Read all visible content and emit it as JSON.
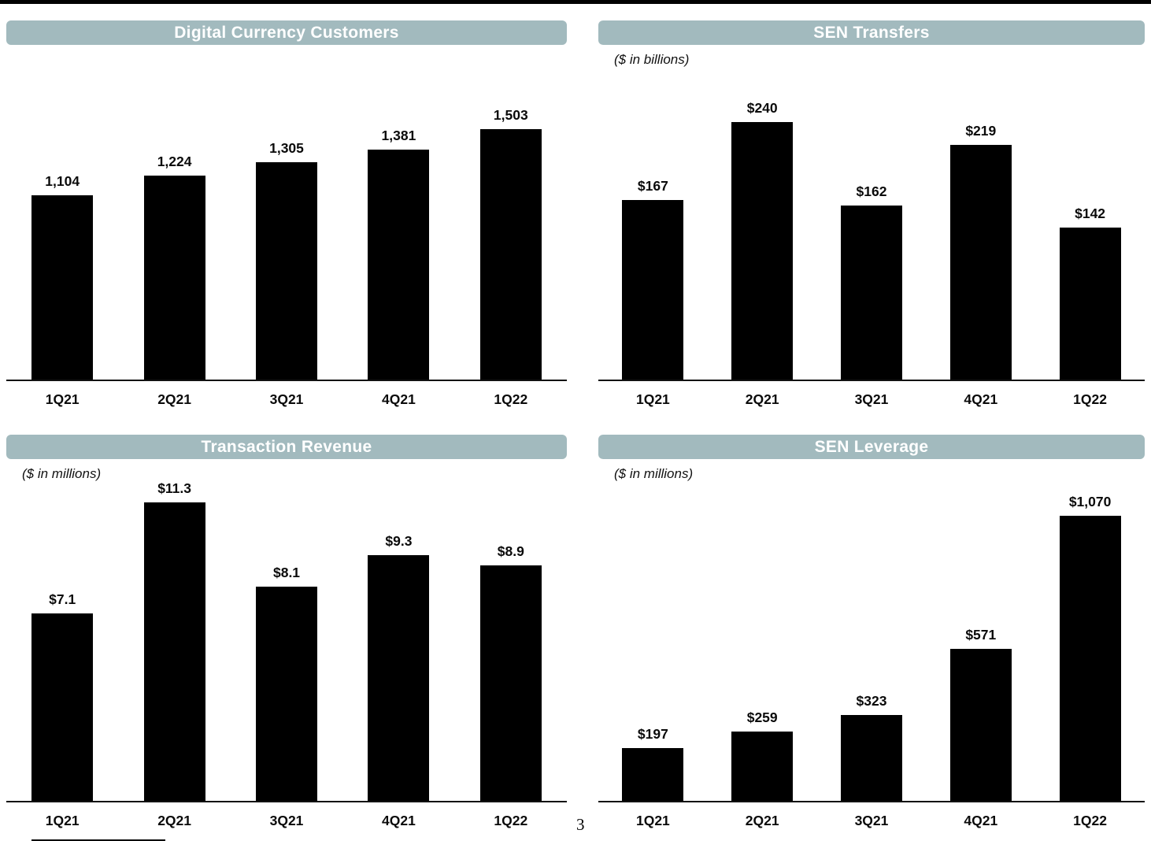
{
  "page": {
    "number": "3"
  },
  "style": {
    "title_bar_color": "#a2babe",
    "bar_color": "#000000"
  },
  "chart_data": [
    {
      "type": "bar",
      "title": "Digital Currency Customers",
      "subtitle": "",
      "categories": [
        "1Q21",
        "2Q21",
        "3Q21",
        "4Q21",
        "1Q22"
      ],
      "values": [
        1104,
        1224,
        1305,
        1381,
        1503
      ],
      "data_labels": [
        "1,104",
        "1,224",
        "1,305",
        "1,381",
        "1,503"
      ],
      "xlabel": "",
      "ylabel": "",
      "ylim": [
        0,
        1600
      ],
      "grid": false,
      "legend": "none",
      "bar_color": "#000000",
      "title_bar_color": "#a2babe"
    },
    {
      "type": "bar",
      "title": "SEN Transfers",
      "subtitle": "($ in billions)",
      "categories": [
        "1Q21",
        "2Q21",
        "3Q21",
        "4Q21",
        "1Q22"
      ],
      "values": [
        167,
        240,
        162,
        219,
        142
      ],
      "data_labels": [
        "$167",
        "$240",
        "$162",
        "$219",
        "$142"
      ],
      "xlabel": "",
      "ylabel": "",
      "ylim": [
        0,
        260
      ],
      "grid": false,
      "legend": "none",
      "bar_color": "#000000",
      "title_bar_color": "#a2babe"
    },
    {
      "type": "bar",
      "title": "Transaction Revenue",
      "subtitle": "($ in millions)",
      "categories": [
        "1Q21",
        "2Q21",
        "3Q21",
        "4Q21",
        "1Q22"
      ],
      "values": [
        7.1,
        11.3,
        8.1,
        9.3,
        8.9
      ],
      "data_labels": [
        "$7.1",
        "$11.3",
        "$8.1",
        "$9.3",
        "$8.9"
      ],
      "xlabel": "",
      "ylabel": "",
      "ylim": [
        0,
        12
      ],
      "grid": false,
      "legend": "none",
      "bar_color": "#000000",
      "title_bar_color": "#a2babe"
    },
    {
      "type": "bar",
      "title": "SEN Leverage",
      "subtitle": "($ in millions)",
      "categories": [
        "1Q21",
        "2Q21",
        "3Q21",
        "4Q21",
        "1Q22"
      ],
      "values": [
        197,
        259,
        323,
        571,
        1070
      ],
      "data_labels": [
        "$197",
        "$259",
        "$323",
        "$571",
        "$1,070"
      ],
      "xlabel": "",
      "ylabel": "",
      "ylim": [
        0,
        1100
      ],
      "grid": false,
      "legend": "none",
      "bar_color": "#000000",
      "title_bar_color": "#a2babe"
    }
  ]
}
